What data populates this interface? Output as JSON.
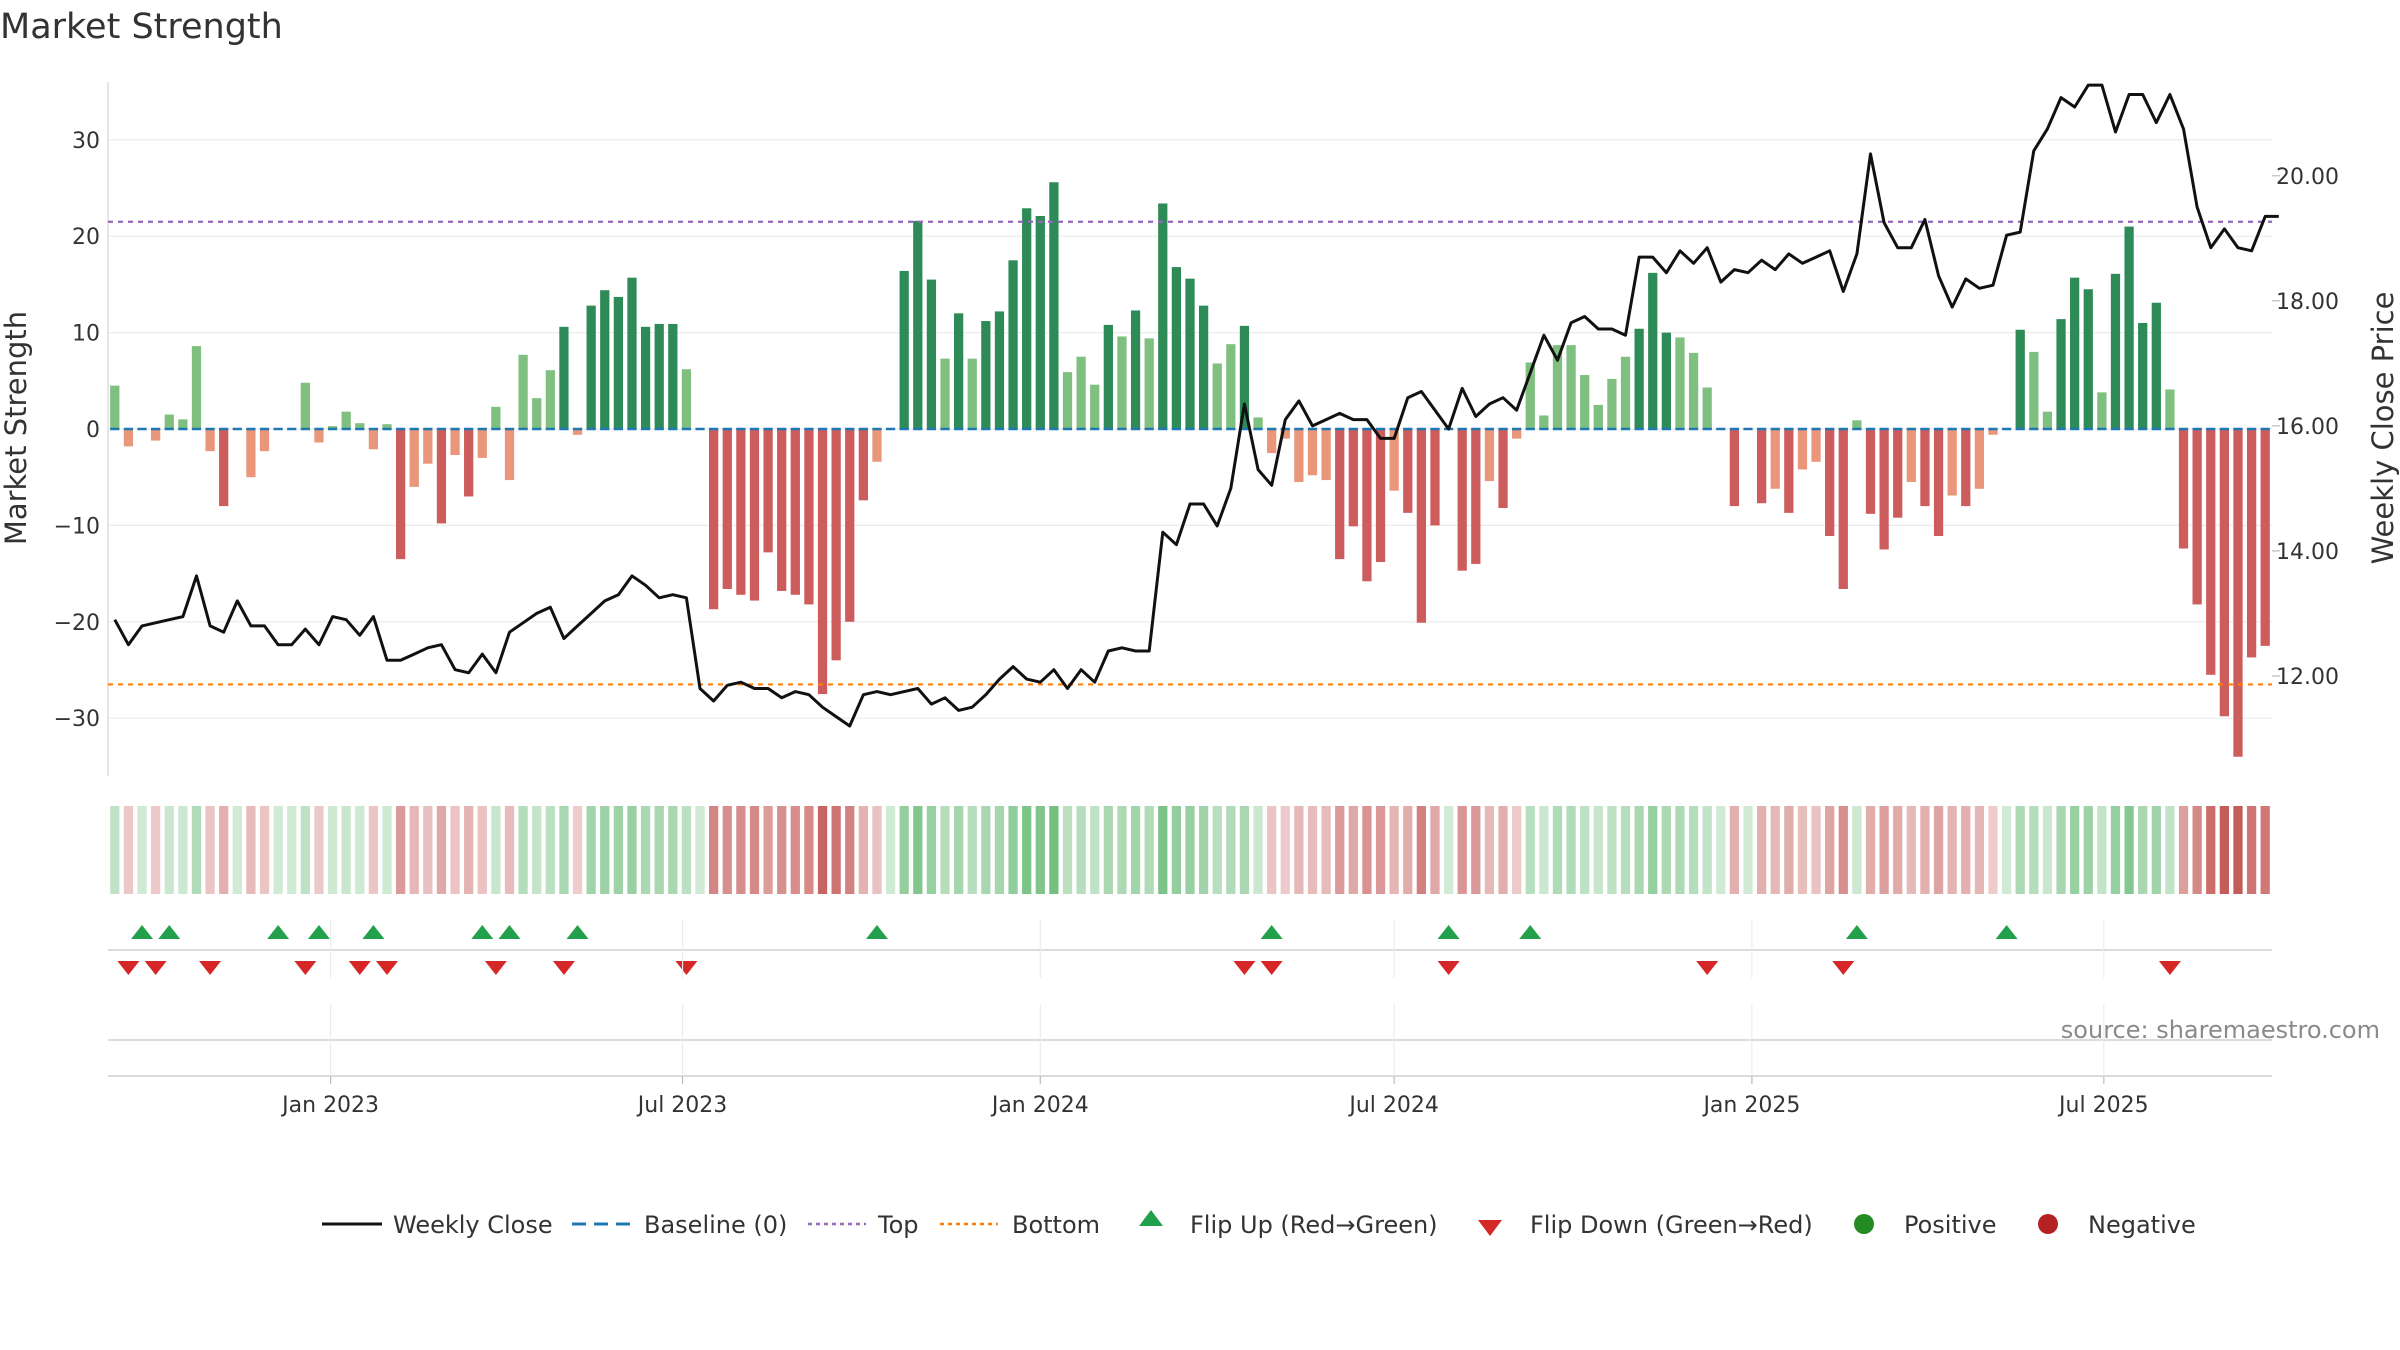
{
  "chart_data": {
    "type": "bar",
    "title": "Market Strength",
    "source": "source: sharemaestro.com",
    "ylabel_left": "Market Strength",
    "ylabel_right": "Weekly Close Price",
    "ylim_left": [
      -36,
      36
    ],
    "ylim_right": [
      10.4,
      21.5
    ],
    "yticks_left": [
      "30",
      "20",
      "10",
      "0",
      "−10",
      "−20",
      "−30"
    ],
    "yticks_right": [
      "20.00",
      "18.00",
      "16.00",
      "14.00",
      "12.00"
    ],
    "xticks": [
      "Jan 2023",
      "Jul 2023",
      "Jan 2024",
      "Jul 2024",
      "Jan 2025",
      "Jul 2025"
    ],
    "top_level": 21.5,
    "bottom_level": -26.5,
    "baseline": 0,
    "legend": {
      "weekly_close": "Weekly Close",
      "baseline": "Baseline (0)",
      "top": "Top",
      "bottom": "Bottom",
      "flip_up": "Flip Up (Red→Green)",
      "flip_down": "Flip Down (Green→Red)",
      "positive": "Positive",
      "negative": "Negative"
    },
    "colors": {
      "pos_strong": "#2e8b57",
      "pos_weak": "#7fbf7f",
      "neg_strong": "#cd5c5c",
      "neg_weak": "#e9967a",
      "line": "#111111",
      "baseline": "#1f77b4",
      "top": "#9467bd",
      "bottom": "#ff7f0e",
      "flip_up": "#22a04b",
      "flip_down": "#d62728",
      "positive_dot": "#228b22",
      "negative_dot": "#b22222"
    },
    "strength": [
      4.5,
      -1.8,
      0,
      -1.2,
      1.5,
      1,
      8.6,
      -2.3,
      -8,
      0,
      -5,
      -2.3,
      0,
      0,
      4.8,
      -1.4,
      0.3,
      1.8,
      0.6,
      -2.1,
      0.5,
      -13.5,
      -6,
      -3.6,
      -9.8,
      -2.7,
      -7,
      -3,
      2.3,
      -5.3,
      7.7,
      3.2,
      6.1,
      10.6,
      -0.6,
      12.8,
      14.4,
      13.7,
      15.7,
      10.6,
      10.9,
      10.9,
      6.2,
      0,
      -18.7,
      -16.6,
      -17.2,
      -17.8,
      -12.8,
      -16.8,
      -17.2,
      -18.2,
      -27.5,
      -24,
      -20,
      -7.4,
      -3.4,
      0,
      16.4,
      21.6,
      15.5,
      7.3,
      12,
      7.3,
      11.2,
      12.2,
      17.5,
      22.9,
      22.1,
      25.6,
      5.9,
      7.5,
      4.6,
      10.8,
      9.6,
      12.3,
      9.4,
      23.4,
      16.8,
      15.6,
      12.8,
      6.8,
      8.8,
      10.7,
      1.2,
      -2.5,
      -1,
      -5.5,
      -4.8,
      -5.3,
      -13.5,
      -10.1,
      -15.8,
      -13.8,
      -6.4,
      -8.7,
      -20.1,
      -10,
      0,
      -14.7,
      -14,
      -5.4,
      -8.2,
      -1,
      6.9,
      1.4,
      8.7,
      8.7,
      5.6,
      2.5,
      5.2,
      7.5,
      10.4,
      16.2,
      10,
      9.5,
      7.9,
      4.3,
      0,
      -8,
      0,
      -7.7,
      -6.2,
      -8.7,
      -4.2,
      -3.4,
      -11.1,
      -16.6,
      0.9,
      -8.8,
      -12.5,
      -9.2,
      -5.5,
      -8,
      -11.1,
      -6.9,
      -8,
      -6.2,
      -0.6,
      0,
      10.3,
      8,
      1.8,
      11.4,
      15.7,
      14.5,
      3.8,
      16.1,
      21,
      11,
      13.1,
      4.1,
      -12.4,
      -18.2,
      -25.5,
      -29.8,
      -34,
      -23.7,
      -22.5
    ],
    "close": [
      12.9,
      12.5,
      12.8,
      12.85,
      12.9,
      12.95,
      13.6,
      12.8,
      12.7,
      13.2,
      12.8,
      12.8,
      12.5,
      12.5,
      12.75,
      12.5,
      12.95,
      12.9,
      12.65,
      12.95,
      12.25,
      12.25,
      12.35,
      12.45,
      12.5,
      12.1,
      12.05,
      12.35,
      12.05,
      12.7,
      12.85,
      13.0,
      13.1,
      12.6,
      12.8,
      13.0,
      13.2,
      13.3,
      13.6,
      13.45,
      13.25,
      13.3,
      13.25,
      11.8,
      11.6,
      11.85,
      11.9,
      11.8,
      11.8,
      11.65,
      11.75,
      11.7,
      11.5,
      11.35,
      11.2,
      11.7,
      11.75,
      11.7,
      11.75,
      11.8,
      11.55,
      11.65,
      11.45,
      11.5,
      11.7,
      11.95,
      12.15,
      11.95,
      11.9,
      12.1,
      11.8,
      12.1,
      11.9,
      12.4,
      12.45,
      12.4,
      12.4,
      14.3,
      14.1,
      14.75,
      14.75,
      14.4,
      15.0,
      16.35,
      15.3,
      15.05,
      16.1,
      16.4,
      16.0,
      16.1,
      16.2,
      16.1,
      16.1,
      15.8,
      15.8,
      16.45,
      16.55,
      16.25,
      15.95,
      16.6,
      16.15,
      16.35,
      16.45,
      16.25,
      16.85,
      17.45,
      17.05,
      17.65,
      17.75,
      17.55,
      17.55,
      17.45,
      18.7,
      18.7,
      18.45,
      18.8,
      18.6,
      18.85,
      18.3,
      18.5,
      18.45,
      18.65,
      18.5,
      18.75,
      18.6,
      18.7,
      18.8,
      18.15,
      18.75,
      20.35,
      19.25,
      18.85,
      18.85,
      19.3,
      18.4,
      17.9,
      18.35,
      18.2,
      18.25,
      19.05,
      19.1,
      20.4,
      20.75,
      21.25,
      21.1,
      21.45,
      21.45,
      20.7,
      21.3,
      21.3,
      20.85,
      21.3,
      20.75,
      19.5,
      18.85,
      19.15,
      18.85,
      18.8,
      19.35,
      19.35
    ],
    "flip_up_weeks": [
      2,
      4,
      12,
      15,
      19,
      27,
      29,
      34,
      56,
      85,
      98,
      104,
      128,
      139
    ],
    "flip_down_weeks": [
      1,
      3,
      7,
      14,
      18,
      20,
      28,
      33,
      42,
      83,
      85,
      98,
      117,
      127,
      151
    ],
    "first_week_date": "2022-09-12",
    "xtick_dates": [
      "2023-01-01",
      "2023-07-01",
      "2024-01-01",
      "2024-07-01",
      "2025-01-01",
      "2025-07-01"
    ]
  }
}
